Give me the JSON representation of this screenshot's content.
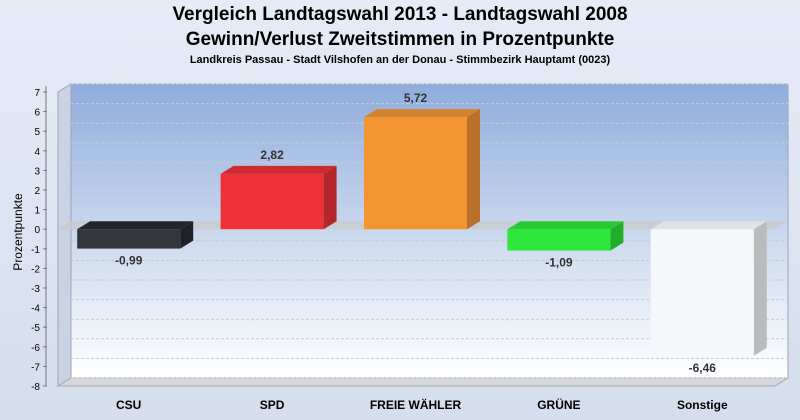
{
  "chart_data": {
    "type": "bar",
    "title": "Vergleich Landtagswahl 2013 - Landtagswahl 2008",
    "subtitle": "Gewinn/Verlust Zweitstimmen in Prozentpunkte",
    "subsubtitle": "Landkreis Passau - Stadt Vilshofen an der Donau - Stimmbezirk Hauptamt (0023)",
    "ylabel": "Prozentpunkte",
    "xlabel": "",
    "ylim": [
      -8,
      7
    ],
    "yticks": [
      7,
      6,
      5,
      4,
      3,
      2,
      1,
      0,
      -1,
      -2,
      -3,
      -4,
      -5,
      -6,
      -7,
      -8
    ],
    "grid": true,
    "categories": [
      "CSU",
      "SPD",
      "FREIE WÄHLER",
      "GRÜNE",
      "Sonstige"
    ],
    "values": [
      -0.99,
      2.82,
      5.72,
      -1.09,
      -6.46
    ],
    "value_labels": [
      "-0,99",
      "2,82",
      "5,72",
      "-1,09",
      "-6,46"
    ],
    "colors": [
      "#33363d",
      "#ee3237",
      "#f39533",
      "#2ee73a",
      "#f6f7fb"
    ],
    "side_colors": [
      "#1f2127",
      "#b3262a",
      "#b8702a",
      "#22ad2b",
      "#b9bbbf"
    ],
    "top_colors": [
      "#22252b",
      "#cf2a2f",
      "#d3832e",
      "#28c932",
      "#dfe1e6"
    ]
  }
}
